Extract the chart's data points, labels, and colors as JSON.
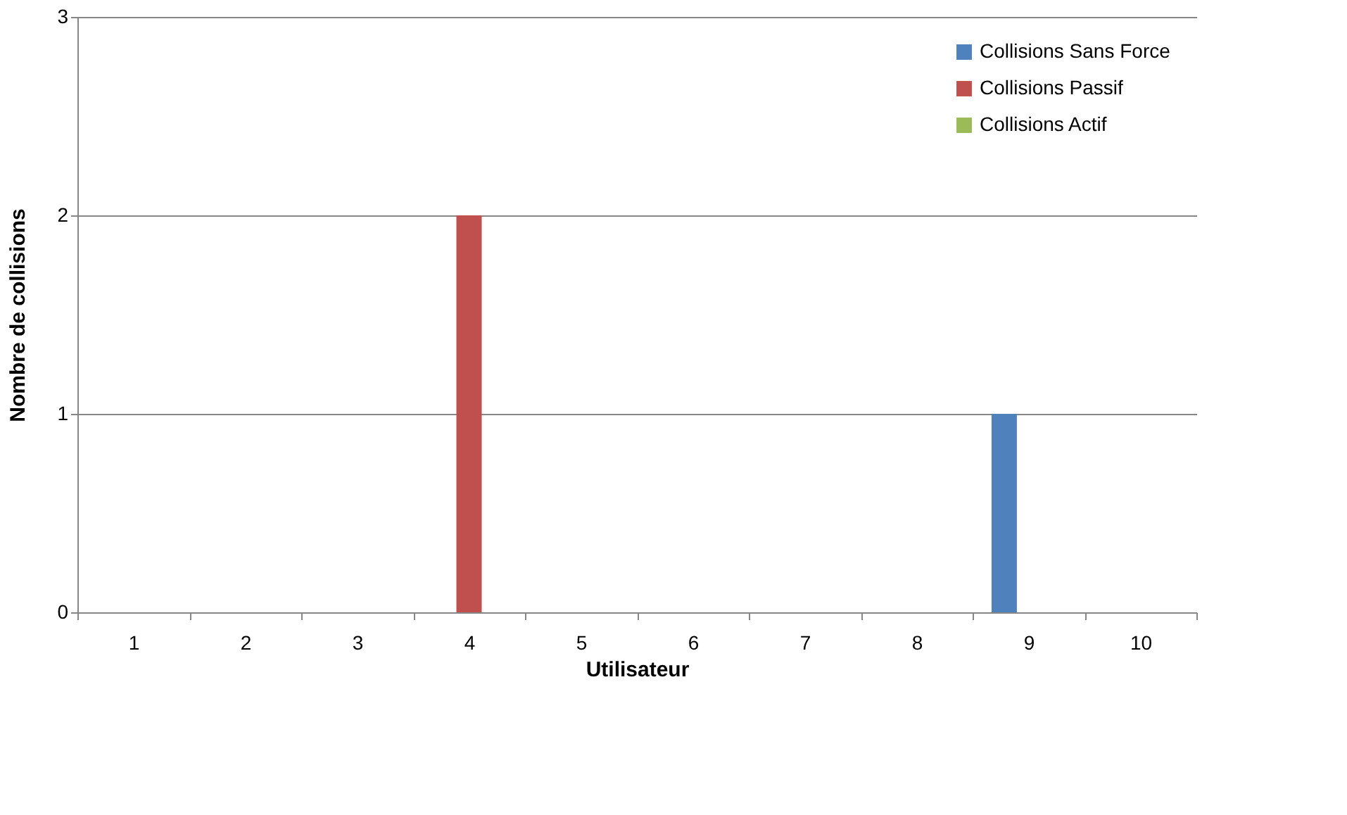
{
  "chart_data": {
    "type": "bar",
    "xlabel": "Utilisateur",
    "ylabel": "Nombre de collisions",
    "categories": [
      "1",
      "2",
      "3",
      "4",
      "5",
      "6",
      "7",
      "8",
      "9",
      "10"
    ],
    "series": [
      {
        "name": "Collisions Sans Force",
        "color": "#4f81bd",
        "values": [
          0,
          0,
          0,
          0,
          0,
          0,
          0,
          0,
          1,
          0
        ]
      },
      {
        "name": "Collisions Passif",
        "color": "#c0504d",
        "values": [
          0,
          0,
          0,
          2,
          0,
          0,
          0,
          0,
          0,
          0
        ]
      },
      {
        "name": "Collisions Actif",
        "color": "#9bbb59",
        "values": [
          0,
          0,
          0,
          0,
          0,
          0,
          0,
          0,
          0,
          0
        ]
      }
    ],
    "ylim": [
      0,
      3
    ],
    "yticks": [
      0,
      1,
      2,
      3
    ],
    "grid": "y",
    "legend": "top right"
  }
}
